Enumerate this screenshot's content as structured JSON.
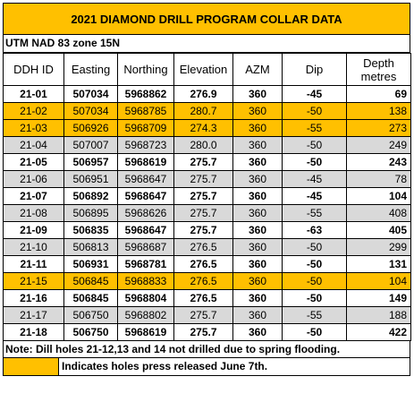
{
  "title": "2021 DIAMOND DRILL PROGRAM COLLAR DATA",
  "subtitle": "UTM NAD 83 zone 15N",
  "headers": [
    "DDH ID",
    "Easting",
    "Northing",
    "Elevation",
    "AZM",
    "Dip",
    "Depth metres"
  ],
  "colors": {
    "released": "#ffc000",
    "gray": "#d9d9d9"
  },
  "rows": [
    {
      "id": "21-01",
      "easting": "507034",
      "northing": "5968862",
      "elevation": "276.9",
      "azm": "360",
      "dip": "-45",
      "depth": "69",
      "style": "white",
      "bold": true
    },
    {
      "id": "21-02",
      "easting": "507034",
      "northing": "5968785",
      "elevation": "280.7",
      "azm": "360",
      "dip": "-50",
      "depth": "138",
      "style": "orange",
      "bold": false
    },
    {
      "id": "21-03",
      "easting": "506926",
      "northing": "5968709",
      "elevation": "274.3",
      "azm": "360",
      "dip": "-55",
      "depth": "273",
      "style": "orange",
      "bold": false
    },
    {
      "id": "21-04",
      "easting": "507007",
      "northing": "5968723",
      "elevation": "280.0",
      "azm": "360",
      "dip": "-50",
      "depth": "249",
      "style": "gray",
      "bold": false
    },
    {
      "id": "21-05",
      "easting": "506957",
      "northing": "5968619",
      "elevation": "275.7",
      "azm": "360",
      "dip": "-50",
      "depth": "243",
      "style": "white",
      "bold": true
    },
    {
      "id": "21-06",
      "easting": "506951",
      "northing": "5968647",
      "elevation": "275.7",
      "azm": "360",
      "dip": "-45",
      "depth": "78",
      "style": "gray",
      "bold": false
    },
    {
      "id": "21-07",
      "easting": "506892",
      "northing": "5968647",
      "elevation": "275.7",
      "azm": "360",
      "dip": "-45",
      "depth": "104",
      "style": "white",
      "bold": true
    },
    {
      "id": "21-08",
      "easting": "506895",
      "northing": "5968626",
      "elevation": "275.7",
      "azm": "360",
      "dip": "-55",
      "depth": "408",
      "style": "gray",
      "bold": false
    },
    {
      "id": "21-09",
      "easting": "506835",
      "northing": "5968647",
      "elevation": "275.7",
      "azm": "360",
      "dip": "-63",
      "depth": "405",
      "style": "white",
      "bold": true
    },
    {
      "id": "21-10",
      "easting": "506813",
      "northing": "5968687",
      "elevation": "276.5",
      "azm": "360",
      "dip": "-50",
      "depth": "299",
      "style": "gray",
      "bold": false
    },
    {
      "id": "21-11",
      "easting": "506931",
      "northing": "5968781",
      "elevation": "276.5",
      "azm": "360",
      "dip": "-50",
      "depth": "131",
      "style": "white",
      "bold": true
    },
    {
      "id": "21-15",
      "easting": "506845",
      "northing": "5968833",
      "elevation": "276.5",
      "azm": "360",
      "dip": "-50",
      "depth": "104",
      "style": "orange",
      "bold": false
    },
    {
      "id": "21-16",
      "easting": "506845",
      "northing": "5968804",
      "elevation": "276.5",
      "azm": "360",
      "dip": "-50",
      "depth": "149",
      "style": "white",
      "bold": true
    },
    {
      "id": "21-17",
      "easting": "506750",
      "northing": "5968802",
      "elevation": "275.7",
      "azm": "360",
      "dip": "-55",
      "depth": "188",
      "style": "gray",
      "bold": false
    },
    {
      "id": "21-18",
      "easting": "506750",
      "northing": "5968619",
      "elevation": "275.7",
      "azm": "360",
      "dip": "-50",
      "depth": "422",
      "style": "white",
      "bold": true
    }
  ],
  "note": "Note: Dill holes 21-12,13 and 14 not drilled due to spring flooding.",
  "legend": "Indicates holes press released June 7th."
}
